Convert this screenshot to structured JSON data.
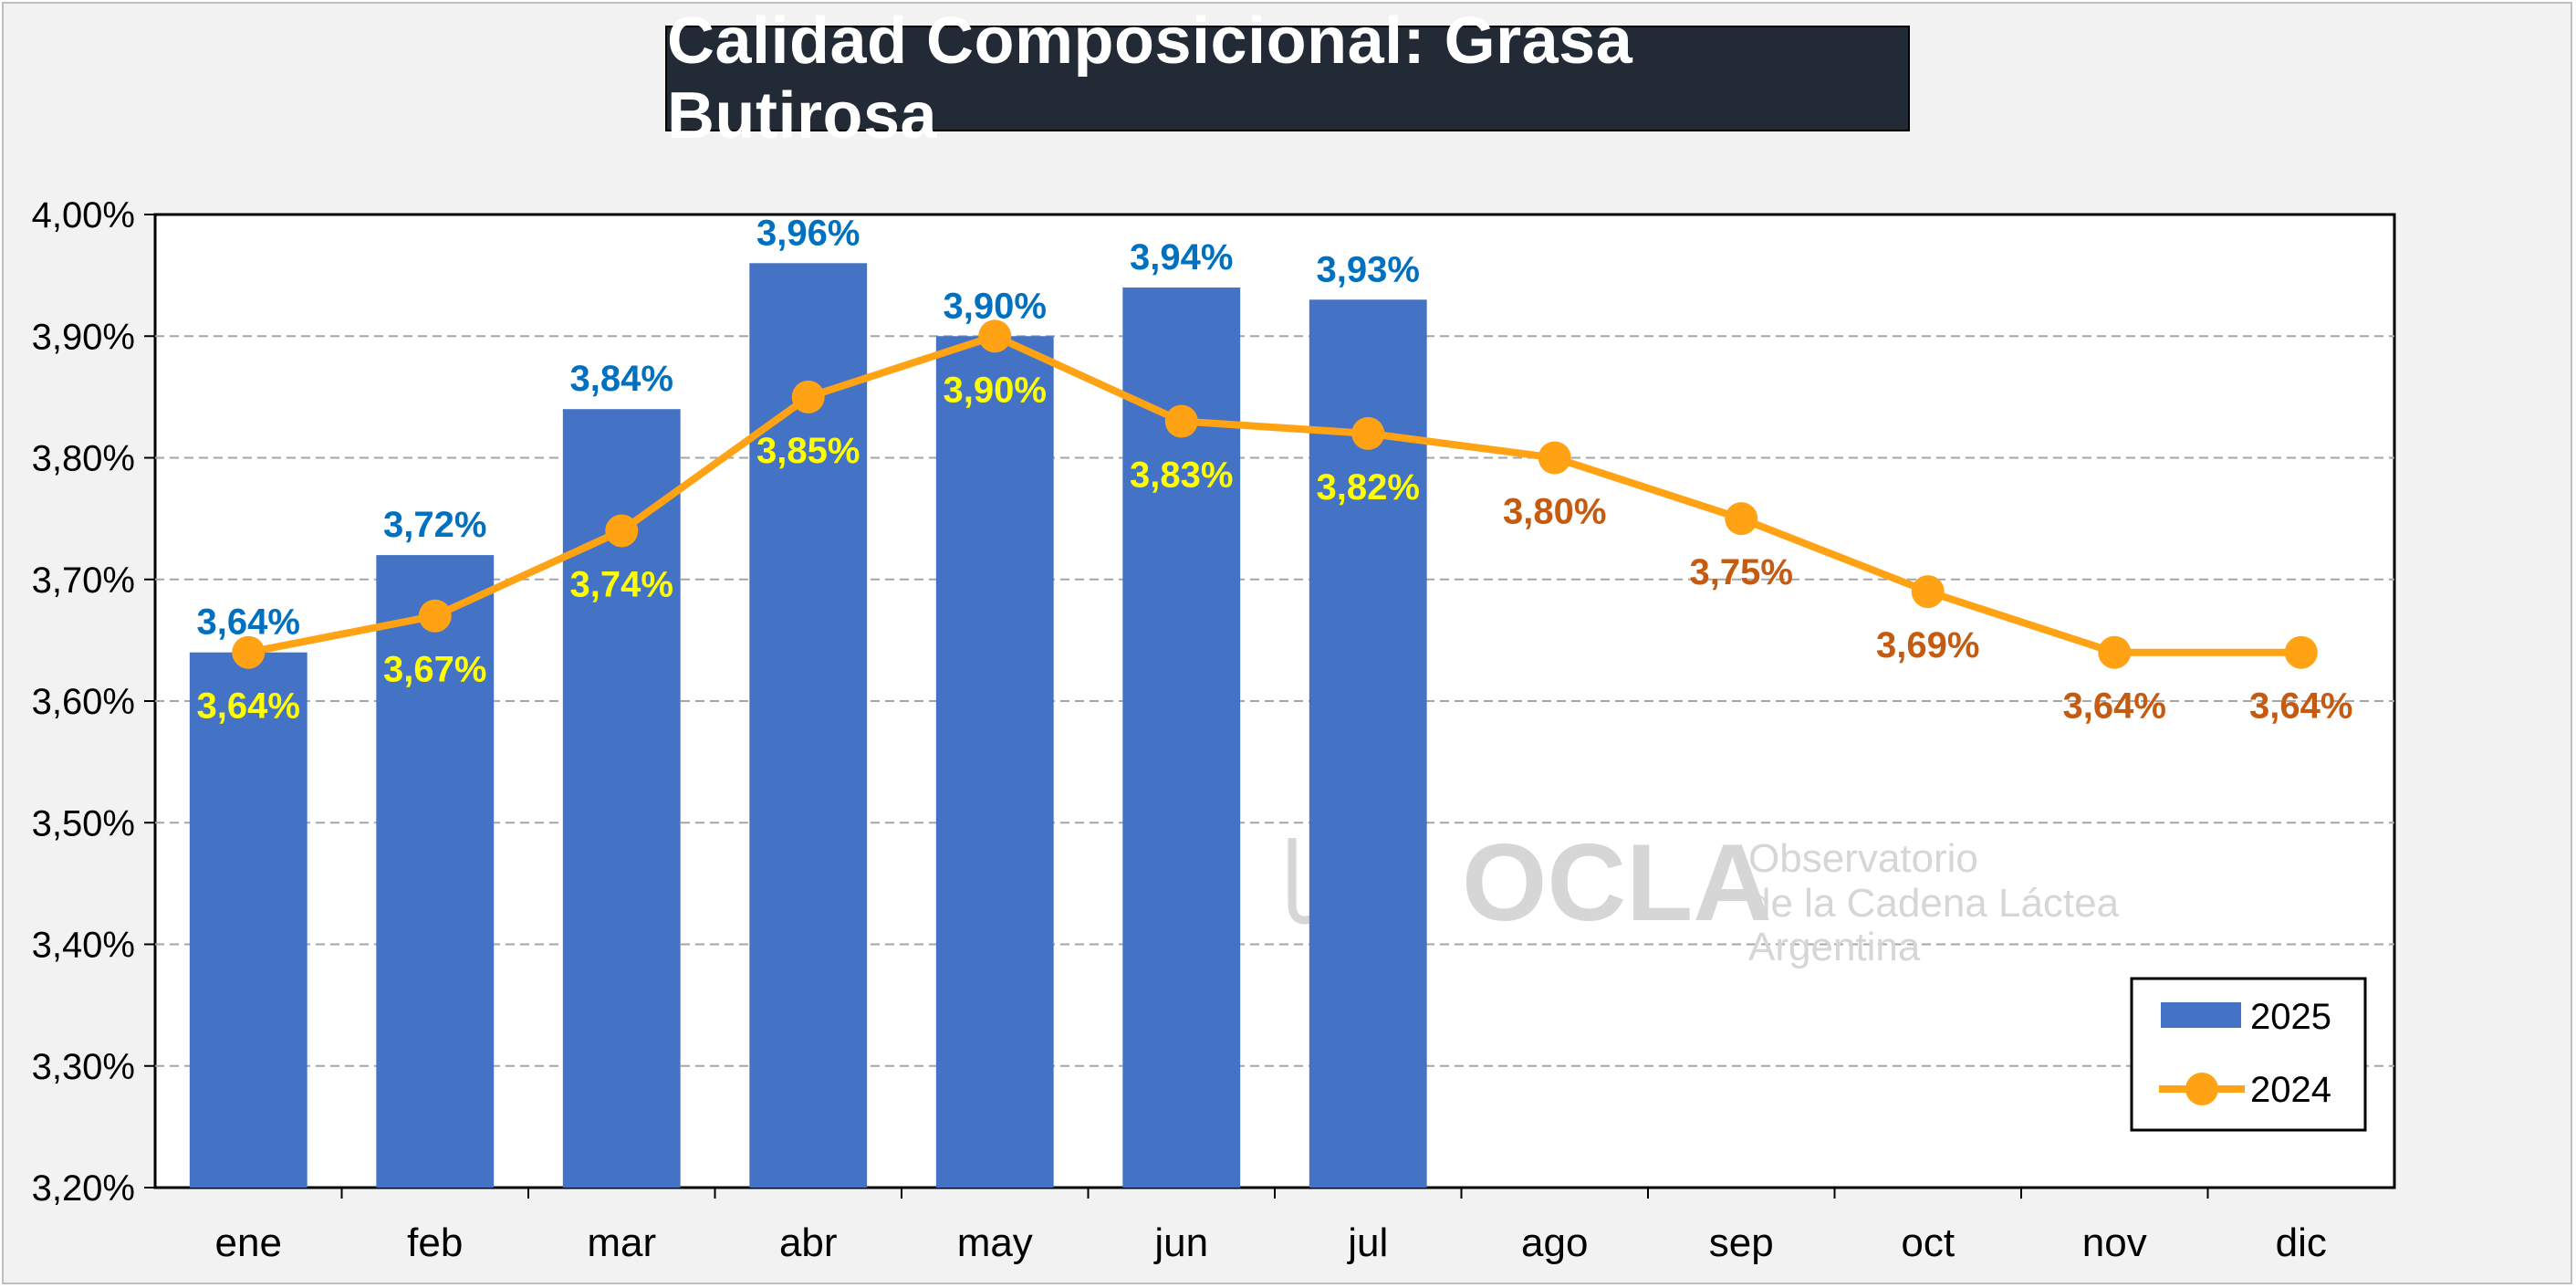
{
  "title": "Calidad Composicional: Grasa Butirosa",
  "watermark": {
    "logo_text": "OCLA",
    "line1": "Observatorio",
    "line2": "de la Cadena Láctea",
    "line3": "Argentina"
  },
  "colors": {
    "bar_2025": "#4472c4",
    "line_2024": "#ffa214",
    "label_2025": "#0070c0",
    "label_2024_overlap": "#ffff00",
    "label_2024_other": "#c55a11",
    "title_bg": "#222a35",
    "grid": "#a6a6a6"
  },
  "chart_data": {
    "type": "bar",
    "categories": [
      "ene",
      "feb",
      "mar",
      "abr",
      "may",
      "jun",
      "jul",
      "ago",
      "sep",
      "oct",
      "nov",
      "dic"
    ],
    "ylim": [
      3.2,
      4.0
    ],
    "yticks": [
      "3,20%",
      "3,30%",
      "3,40%",
      "3,50%",
      "3,60%",
      "3,70%",
      "3,80%",
      "3,90%",
      "4,00%"
    ],
    "grid": "horizontal dashed",
    "legend_position": "bottom-right",
    "series": [
      {
        "name": "2025",
        "kind": "bar",
        "values": [
          3.64,
          3.72,
          3.84,
          3.96,
          3.9,
          3.94,
          3.93,
          null,
          null,
          null,
          null,
          null
        ],
        "labels": [
          "3,64%",
          "3,72%",
          "3,84%",
          "3,96%",
          "3,90%",
          "3,94%",
          "3,93%",
          "",
          "",
          "",
          "",
          ""
        ]
      },
      {
        "name": "2024",
        "kind": "line",
        "values": [
          3.64,
          3.67,
          3.74,
          3.85,
          3.9,
          3.83,
          3.82,
          3.8,
          3.75,
          3.69,
          3.64,
          3.64
        ],
        "labels": [
          "3,64%",
          "3,67%",
          "3,74%",
          "3,85%",
          "3,90%",
          "3,83%",
          "3,82%",
          "3,80%",
          "3,75%",
          "3,69%",
          "3,64%",
          "3,64%"
        ]
      }
    ]
  }
}
